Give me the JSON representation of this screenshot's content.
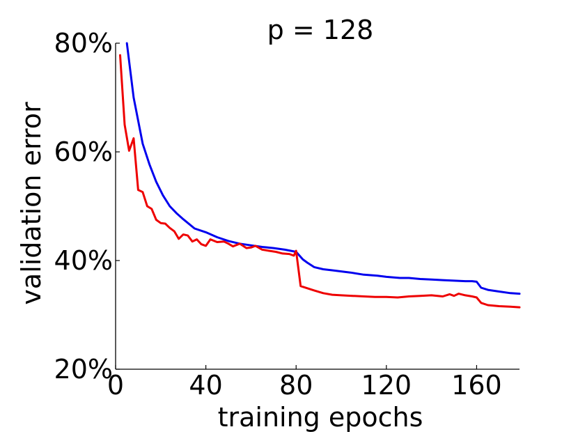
{
  "chart_data": {
    "type": "line",
    "title": "p = 128",
    "xlabel": "training epochs",
    "ylabel": "validation error",
    "xlim": [
      0,
      179
    ],
    "ylim": [
      20,
      80
    ],
    "x_ticks": [
      0,
      40,
      80,
      120,
      160
    ],
    "x_tick_labels": [
      "0",
      "40",
      "80",
      "120",
      "160"
    ],
    "y_ticks": [
      20,
      40,
      60,
      80
    ],
    "y_tick_labels": [
      "20%",
      "40%",
      "60%",
      "80%"
    ],
    "grid": false,
    "series": [
      {
        "name": "blue",
        "color": "#0000ee",
        "x": [
          5,
          8,
          12,
          15,
          18,
          21,
          24,
          27,
          30,
          35,
          40,
          45,
          50,
          55,
          60,
          65,
          70,
          75,
          80,
          83,
          85,
          88,
          92,
          96,
          100,
          104,
          110,
          116,
          120,
          126,
          130,
          135,
          140,
          145,
          150,
          155,
          158,
          160,
          162,
          165,
          170,
          175,
          179
        ],
        "values": [
          80,
          70,
          61.5,
          57.7,
          54.5,
          52,
          50,
          48.7,
          47.6,
          45.9,
          45.2,
          44.3,
          43.6,
          43.1,
          42.8,
          42.5,
          42.3,
          42,
          41.6,
          40.2,
          39.6,
          38.8,
          38.4,
          38.2,
          38,
          37.8,
          37.4,
          37.2,
          37,
          36.8,
          36.8,
          36.6,
          36.5,
          36.4,
          36.3,
          36.2,
          36.2,
          36.1,
          35,
          34.6,
          34.3,
          34,
          33.9
        ]
      },
      {
        "name": "red",
        "color": "#ee0000",
        "x": [
          2,
          4,
          6,
          8,
          10,
          12,
          14,
          16,
          18,
          20,
          22,
          24,
          26,
          28,
          30,
          32,
          34,
          36,
          38,
          40,
          42,
          45,
          48,
          50,
          52,
          55,
          58,
          60,
          62,
          65,
          68,
          71,
          74,
          77,
          79,
          80,
          82,
          85,
          88,
          92,
          96,
          100,
          105,
          110,
          115,
          120,
          125,
          130,
          135,
          140,
          145,
          148,
          150,
          152,
          155,
          158,
          160,
          162,
          165,
          170,
          175,
          179
        ],
        "values": [
          77.8,
          65,
          60.2,
          62.5,
          53,
          52.6,
          50,
          49.5,
          47.5,
          46.9,
          46.8,
          46,
          45.4,
          44,
          44.8,
          44.6,
          43.5,
          43.9,
          43,
          42.7,
          43.9,
          43.4,
          43.5,
          43.1,
          42.6,
          43.1,
          42.3,
          42.4,
          42.7,
          42,
          41.8,
          41.6,
          41.3,
          41.2,
          40.9,
          41.8,
          35.3,
          34.9,
          34.5,
          34,
          33.7,
          33.6,
          33.5,
          33.4,
          33.3,
          33.3,
          33.2,
          33.4,
          33.5,
          33.6,
          33.4,
          33.8,
          33.5,
          33.9,
          33.6,
          33.4,
          33.2,
          32.2,
          31.8,
          31.6,
          31.5,
          31.4
        ]
      }
    ]
  }
}
